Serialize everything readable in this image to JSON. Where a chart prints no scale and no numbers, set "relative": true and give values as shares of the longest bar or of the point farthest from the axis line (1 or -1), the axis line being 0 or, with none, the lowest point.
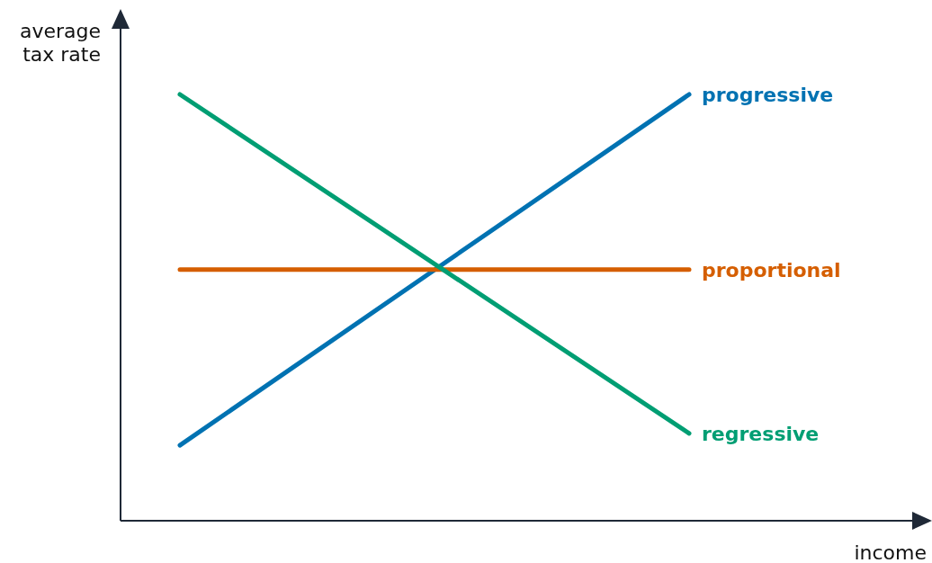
{
  "chart_data": {
    "type": "line",
    "relative": true,
    "xlabel": "income",
    "ylabel": "average tax rate",
    "categories": [
      null,
      null
    ],
    "series": [
      {
        "name": "progressive",
        "color": "#0072b2",
        "values": [
          0.177,
          1
        ]
      },
      {
        "name": "proportional",
        "color": "#d55e00",
        "values": [
          0.589,
          0.589
        ]
      },
      {
        "name": "regressive",
        "color": "#009e73",
        "values": [
          1,
          0.205
        ]
      }
    ]
  }
}
